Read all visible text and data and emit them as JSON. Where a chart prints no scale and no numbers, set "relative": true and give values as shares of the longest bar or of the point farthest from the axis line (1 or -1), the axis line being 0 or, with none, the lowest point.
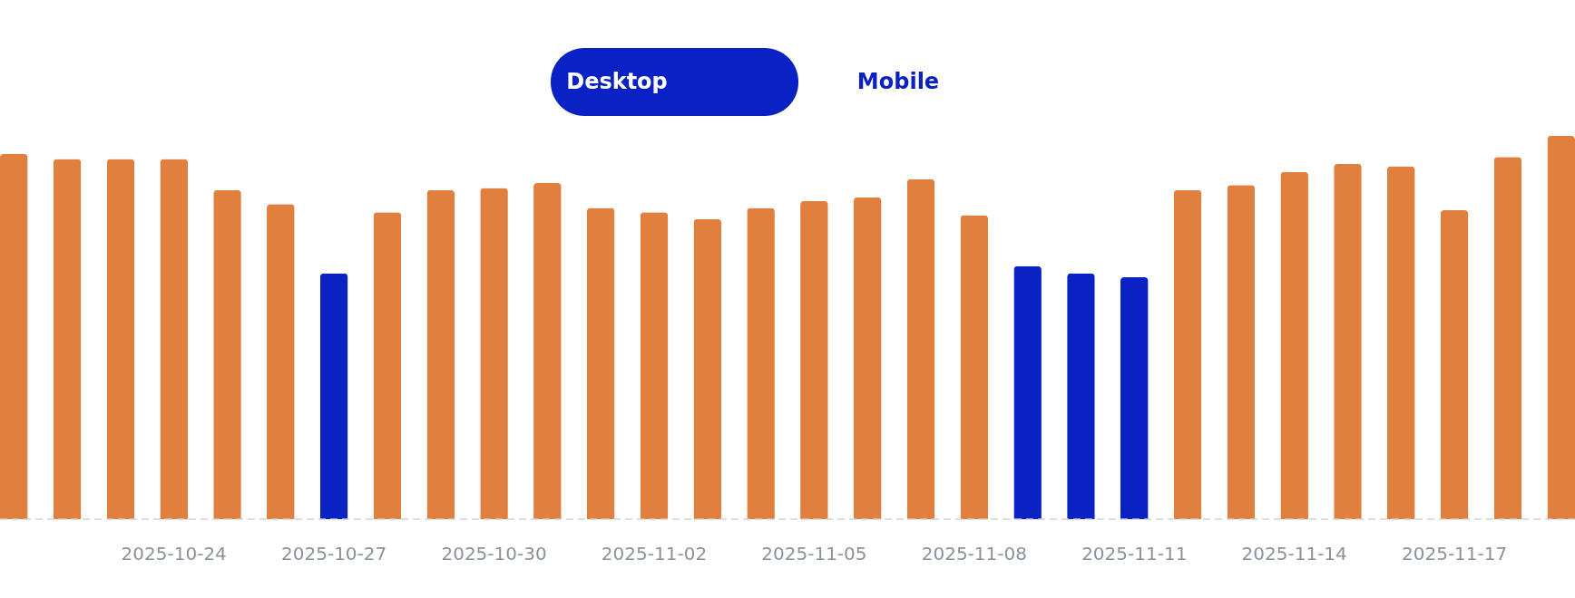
{
  "chart_data": {
    "type": "bar",
    "relative": true,
    "categories": [
      null,
      null,
      null,
      "2025-10-24",
      null,
      null,
      "2025-10-27",
      null,
      null,
      "2025-10-30",
      null,
      null,
      "2025-11-02",
      null,
      null,
      "2025-11-05",
      null,
      null,
      "2025-11-08",
      null,
      null,
      "2025-11-11",
      null,
      null,
      "2025-11-14",
      null,
      null,
      "2025-11-17",
      null,
      null
    ],
    "values": [
      0.953,
      0.94,
      0.94,
      0.94,
      0.859,
      0.822,
      0.641,
      0.801,
      0.859,
      0.864,
      0.877,
      0.812,
      0.801,
      0.783,
      0.812,
      0.83,
      0.84,
      0.887,
      0.793,
      0.66,
      0.641,
      0.631,
      0.859,
      0.872,
      0.906,
      0.927,
      0.921,
      0.806,
      0.945,
      1
    ],
    "colors": [
      "#e07f3e",
      "#e07f3e",
      "#e07f3e",
      "#e07f3e",
      "#e07f3e",
      "#e07f3e",
      "#0a21c4",
      "#e07f3e",
      "#e07f3e",
      "#e07f3e",
      "#e07f3e",
      "#e07f3e",
      "#e07f3e",
      "#e07f3e",
      "#e07f3e",
      "#e07f3e",
      "#e07f3e",
      "#e07f3e",
      "#e07f3e",
      "#0a21c4",
      "#0a21c4",
      "#0a21c4",
      "#e07f3e",
      "#e07f3e",
      "#e07f3e",
      "#e07f3e",
      "#e07f3e",
      "#e07f3e",
      "#e07f3e",
      "#e07f3e"
    ],
    "annotations": [
      "Desktop",
      "Mobile"
    ]
  }
}
